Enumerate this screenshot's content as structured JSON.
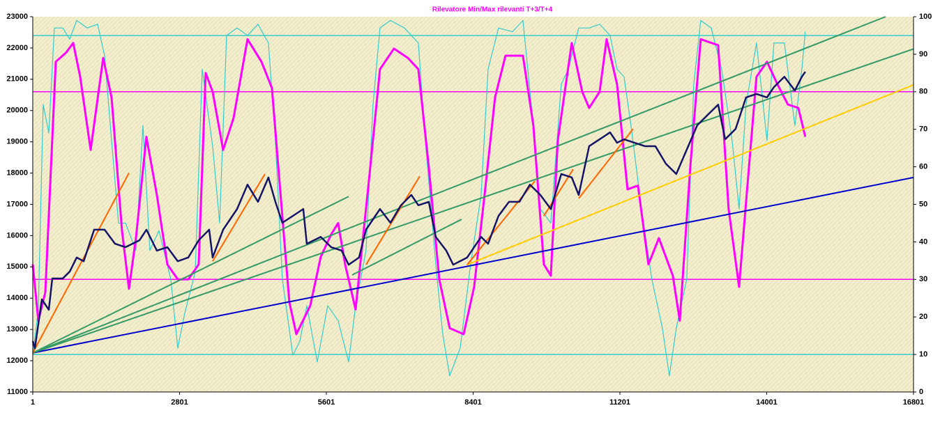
{
  "chart_data": {
    "type": "line",
    "title": "Rilevatore Min/Max rilevanti T+3/T+4",
    "xlim": [
      1,
      16801
    ],
    "xticks": [
      1,
      2801,
      5601,
      8401,
      11201,
      14001,
      16801
    ],
    "ylim": [
      11000,
      23000
    ],
    "yticks": [
      11000,
      12000,
      13000,
      14000,
      15000,
      16000,
      17000,
      18000,
      19000,
      20000,
      21000,
      22000,
      23000
    ],
    "y2lim": [
      0,
      100
    ],
    "y2ticks": [
      0,
      10,
      20,
      30,
      40,
      50,
      60,
      70,
      80,
      90,
      100
    ],
    "background": "#f3eecd",
    "series": [
      {
        "color": "#33cccc",
        "axis": "y2",
        "width": 1.5,
        "x": [
          1,
          16801
        ],
        "values": [
          95,
          95
        ]
      },
      {
        "color": "#33cccc",
        "axis": "y2",
        "width": 1.5,
        "x": [
          1,
          16801
        ],
        "values": [
          10,
          10
        ]
      },
      {
        "color": "#ff00ff",
        "axis": "y2",
        "width": 1.5,
        "x": [
          1,
          16801
        ],
        "values": [
          80,
          80
        ]
      },
      {
        "color": "#ff00ff",
        "axis": "y2",
        "width": 1.5,
        "x": [
          1,
          16801
        ],
        "values": [
          30,
          30
        ]
      },
      {
        "color": "#33cccc",
        "axis": "y2",
        "width": 1.2,
        "x": [
          1,
          107,
          200,
          307,
          413,
          573,
          706,
          839,
          1038,
          1238,
          1371,
          1504,
          1637,
          1770,
          1969,
          2102,
          2235,
          2408,
          2634,
          2767,
          2900,
          3100,
          3233,
          3432,
          3565,
          3698,
          3898,
          4097,
          4297,
          4496,
          4629,
          4762,
          4962,
          5095,
          5228,
          5427,
          5627,
          5826,
          6026,
          6159,
          6358,
          6491,
          6624,
          6824,
          7090,
          7356,
          7489,
          7688,
          7821,
          7954,
          8154,
          8353,
          8553,
          8686,
          8885,
          9151,
          9351,
          9550,
          9683,
          9883,
          10082,
          10215,
          10415,
          10614,
          10814,
          11013,
          11146,
          11279,
          11412,
          11612,
          11811,
          12011,
          12144,
          12276,
          12476,
          12609,
          12742,
          12942,
          13142,
          13341,
          13474,
          13607,
          13806,
          14006,
          14139,
          14338,
          14538,
          14671,
          14737
        ],
        "values": [
          9.8,
          22,
          76.6,
          69,
          97,
          97,
          94,
          99,
          97,
          98,
          89.6,
          67,
          45,
          45,
          37.7,
          71,
          37.7,
          43,
          30,
          11.7,
          21,
          32,
          86,
          65.5,
          45,
          95,
          97,
          95,
          98,
          93,
          67,
          30,
          9.8,
          13.5,
          23,
          8,
          23,
          19,
          8,
          23,
          37.7,
          76.6,
          97,
          99,
          97,
          93,
          67,
          34,
          15.4,
          4.3,
          11.7,
          34,
          52.5,
          86,
          97,
          96,
          99,
          71,
          48.8,
          45,
          82,
          86,
          97,
          97,
          98,
          95,
          86,
          84,
          71,
          48.8,
          30,
          17,
          4.3,
          17,
          30,
          82,
          99,
          97,
          86,
          67,
          48.8,
          76.6,
          93,
          67,
          93,
          93,
          71,
          86,
          96
        ]
      },
      {
        "color": "#ff00ff",
        "axis": "y2",
        "width": 3,
        "x": [
          1,
          107,
          240,
          440,
          640,
          772,
          905,
          1105,
          1344,
          1504,
          1703,
          1836,
          1969,
          2168,
          2368,
          2568,
          2767,
          2967,
          3166,
          3299,
          3432,
          3632,
          3831,
          4097,
          4363,
          4563,
          4696,
          4895,
          5028,
          5294,
          5494,
          5693,
          5826,
          5959,
          6159,
          6425,
          6624,
          6890,
          7156,
          7356,
          7555,
          7755,
          7954,
          8220,
          8420,
          8619,
          8819,
          9018,
          9351,
          9550,
          9750,
          9883,
          10016,
          10282,
          10482,
          10614,
          10814,
          10947,
          11146,
          11346,
          11545,
          11745,
          11944,
          12210,
          12343,
          12543,
          12742,
          13075,
          13274,
          13474,
          13607,
          13806,
          14006,
          14205,
          14405,
          14604,
          14737
        ],
        "values": [
          34,
          19,
          26.5,
          88,
          90.5,
          93,
          84,
          64.5,
          89,
          78.5,
          43,
          27.5,
          41,
          68,
          52.5,
          34,
          30,
          30,
          34,
          85,
          80,
          64.5,
          73,
          94,
          88,
          81,
          58,
          24,
          15.4,
          23,
          36,
          42,
          45,
          34,
          22,
          58,
          86,
          91.5,
          89,
          86,
          60,
          30,
          17,
          15.4,
          28,
          52.5,
          78.5,
          89.6,
          89.6,
          71,
          34,
          31,
          67,
          93,
          80,
          75.7,
          80,
          94,
          82,
          54,
          55,
          34,
          41,
          31,
          19,
          60,
          94,
          92.4,
          48.8,
          28,
          50.6,
          84,
          88,
          82,
          76.6,
          75.7,
          68
        ]
      },
      {
        "color": "#0000cc",
        "width": 2,
        "x": [
          1,
          16801
        ],
        "values": [
          12250,
          17860
        ]
      },
      {
        "color": "#339966",
        "width": 2,
        "x": [
          1,
          16268
        ],
        "values": [
          12250,
          23000
        ]
      },
      {
        "color": "#339966",
        "width": 2,
        "x": [
          1,
          16801
        ],
        "values": [
          12250,
          21970
        ]
      },
      {
        "color": "#339966",
        "width": 2,
        "x": [
          1,
          6026
        ],
        "values": [
          12250,
          17250
        ]
      },
      {
        "color": "#339966",
        "width": 2,
        "x": [
          6092,
          8180
        ],
        "values": [
          14740,
          16520
        ]
      },
      {
        "color": "#ffcc00",
        "width": 2,
        "x": [
          8287,
          16801
        ],
        "values": [
          15070,
          20820
        ]
      },
      {
        "color": "#ff6600",
        "width": 2,
        "x": [
          1,
          1836
        ],
        "values": [
          12250,
          18000
        ]
      },
      {
        "color": "#ff6600",
        "width": 2,
        "x": [
          3432,
          4430
        ],
        "values": [
          15180,
          17970
        ]
      },
      {
        "color": "#ff6600",
        "width": 2,
        "x": [
          6358,
          7383
        ],
        "values": [
          15070,
          17900
        ]
      },
      {
        "color": "#ff6600",
        "width": 2,
        "x": [
          8287,
          9577
        ],
        "values": [
          15070,
          17740
        ]
      },
      {
        "color": "#ff6600",
        "width": 2,
        "x": [
          9750,
          10309
        ],
        "values": [
          16630,
          18120
        ]
      },
      {
        "color": "#ff6600",
        "width": 2,
        "x": [
          10415,
          11452
        ],
        "values": [
          17190,
          19410
        ]
      },
      {
        "color": "#141466",
        "width": 2.5,
        "x": [
          1,
          41,
          174,
          307,
          373,
          573,
          706,
          839,
          972,
          1172,
          1371,
          1570,
          1770,
          2036,
          2169,
          2368,
          2568,
          2767,
          2967,
          3166,
          3366,
          3432,
          3632,
          3898,
          4097,
          4297,
          4496,
          4629,
          4762,
          4962,
          5161,
          5228,
          5494,
          5693,
          5893,
          6026,
          6225,
          6358,
          6624,
          6824,
          7023,
          7223,
          7356,
          7555,
          7688,
          7888,
          8021,
          8287,
          8553,
          8686,
          8885,
          9085,
          9284,
          9484,
          9683,
          9883,
          10082,
          10282,
          10415,
          10614,
          10814,
          11013,
          11146,
          11279,
          11479,
          11678,
          11877,
          12077,
          12276,
          12476,
          12676,
          12875,
          13075,
          13208,
          13407,
          13607,
          13806,
          14006,
          14139,
          14338,
          14538,
          14671,
          14737
        ],
        "values": [
          12625,
          12400,
          13960,
          13630,
          14630,
          14630,
          14850,
          15300,
          15180,
          16190,
          16190,
          15740,
          15630,
          15850,
          16190,
          15520,
          15630,
          15180,
          15300,
          15850,
          16190,
          15300,
          16190,
          16850,
          17630,
          17080,
          17860,
          17080,
          16410,
          16630,
          16850,
          15740,
          15960,
          15630,
          15520,
          15070,
          15300,
          16190,
          16850,
          16410,
          16970,
          17300,
          16970,
          17080,
          15960,
          15520,
          15070,
          15300,
          15960,
          15740,
          16630,
          17080,
          17080,
          17630,
          17300,
          16850,
          17970,
          17860,
          17300,
          18860,
          19080,
          19300,
          18970,
          19080,
          18970,
          18860,
          18860,
          18300,
          17970,
          18750,
          19530,
          19860,
          20190,
          19080,
          19410,
          20420,
          20530,
          20420,
          20750,
          21080,
          20640,
          21080,
          21240
        ]
      }
    ]
  }
}
